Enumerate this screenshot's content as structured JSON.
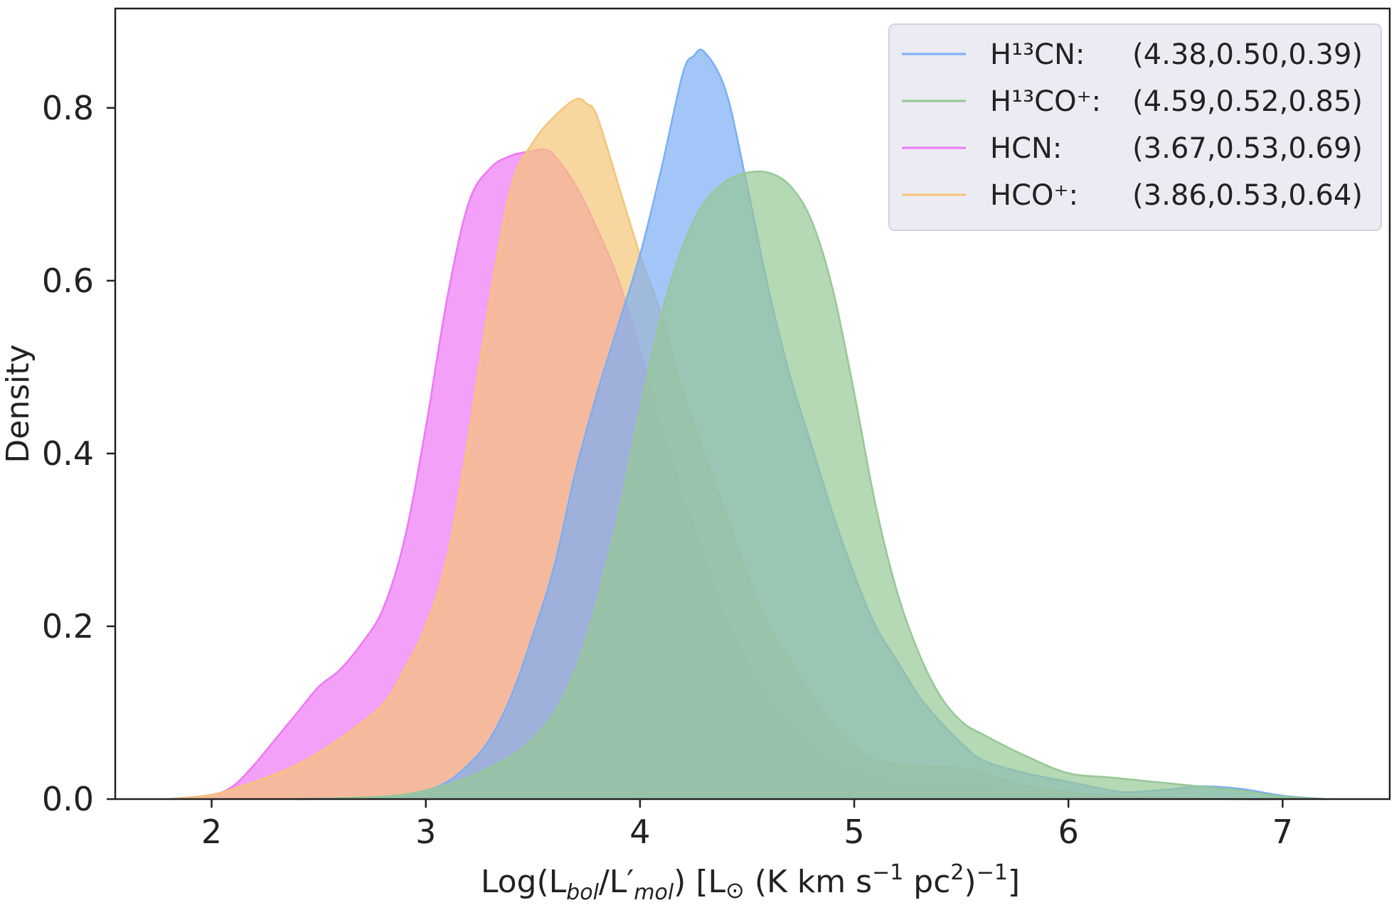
{
  "chart_data": {
    "type": "area",
    "title": "",
    "xlabel": {
      "prefix": "Log(L",
      "sub1": "bol",
      "slash": "/L",
      "prime": "′",
      "sub2": "mol",
      "mid": ") [L",
      "odot": "⊙",
      "kms": "  (K km s",
      "sup1": "−1",
      "pc": " pc",
      "sup2": "2",
      "close": ")",
      "sup3": "−1",
      "end": "]"
    },
    "ylabel": "Density",
    "xlim": [
      1.55,
      7.5
    ],
    "ylim": [
      0,
      0.915
    ],
    "xticks": [
      2,
      3,
      4,
      5,
      6,
      7
    ],
    "yticks": [
      0.0,
      0.2,
      0.4,
      0.6,
      0.8
    ],
    "legend_position": "top-right",
    "series": [
      {
        "name": "HCN",
        "legend_stats": "(3.67,0.53,0.69)",
        "color": "#ee77f5",
        "x": [
          1.8,
          2.0,
          2.1,
          2.2,
          2.3,
          2.4,
          2.5,
          2.6,
          2.7,
          2.8,
          2.9,
          3.0,
          3.1,
          3.2,
          3.3,
          3.4,
          3.5,
          3.55,
          3.6,
          3.7,
          3.8,
          3.9,
          4.0,
          4.1,
          4.2,
          4.3,
          4.4,
          4.5,
          4.6,
          4.7,
          4.8,
          4.9,
          5.0,
          5.2,
          5.4,
          5.6,
          5.8,
          6.0,
          6.2,
          6.5,
          6.8,
          7.0
        ],
        "y": [
          0.0,
          0.005,
          0.015,
          0.04,
          0.07,
          0.1,
          0.13,
          0.15,
          0.18,
          0.22,
          0.3,
          0.43,
          0.58,
          0.69,
          0.73,
          0.745,
          0.75,
          0.752,
          0.745,
          0.71,
          0.66,
          0.6,
          0.52,
          0.43,
          0.35,
          0.28,
          0.21,
          0.16,
          0.12,
          0.09,
          0.06,
          0.045,
          0.035,
          0.02,
          0.015,
          0.015,
          0.008,
          0.004,
          0.002,
          0.001,
          0.0,
          0.0
        ]
      },
      {
        "name": "HCO⁺",
        "legend_stats": "(3.86,0.53,0.64)",
        "color": "#f5c478",
        "x": [
          1.8,
          2.0,
          2.2,
          2.4,
          2.6,
          2.8,
          2.9,
          3.0,
          3.1,
          3.2,
          3.3,
          3.4,
          3.5,
          3.6,
          3.7,
          3.75,
          3.8,
          3.9,
          4.0,
          4.1,
          4.2,
          4.3,
          4.4,
          4.5,
          4.6,
          4.7,
          4.8,
          4.9,
          5.0,
          5.1,
          5.2,
          5.4,
          5.5,
          5.6,
          5.8,
          6.0,
          6.2,
          6.5,
          6.8,
          7.0
        ],
        "y": [
          0.0,
          0.005,
          0.02,
          0.04,
          0.07,
          0.11,
          0.15,
          0.2,
          0.28,
          0.42,
          0.58,
          0.71,
          0.76,
          0.79,
          0.81,
          0.805,
          0.79,
          0.71,
          0.63,
          0.56,
          0.47,
          0.4,
          0.33,
          0.26,
          0.2,
          0.16,
          0.12,
          0.085,
          0.06,
          0.045,
          0.04,
          0.037,
          0.035,
          0.03,
          0.015,
          0.008,
          0.004,
          0.002,
          0.0,
          0.0
        ]
      },
      {
        "name": "H¹³CN",
        "legend_stats": "(4.38,0.50,0.39)",
        "color": "#7aaef5",
        "x": [
          2.4,
          2.8,
          3.0,
          3.1,
          3.2,
          3.3,
          3.4,
          3.5,
          3.6,
          3.7,
          3.8,
          3.9,
          4.0,
          4.1,
          4.2,
          4.25,
          4.3,
          4.4,
          4.5,
          4.6,
          4.7,
          4.8,
          4.9,
          5.0,
          5.1,
          5.2,
          5.3,
          5.4,
          5.5,
          5.6,
          5.8,
          6.0,
          6.2,
          6.3,
          6.5,
          6.6,
          6.8,
          7.0,
          7.2
        ],
        "y": [
          0.0,
          0.002,
          0.01,
          0.02,
          0.04,
          0.07,
          0.12,
          0.19,
          0.27,
          0.38,
          0.47,
          0.55,
          0.63,
          0.73,
          0.84,
          0.86,
          0.865,
          0.82,
          0.71,
          0.59,
          0.49,
          0.41,
          0.33,
          0.26,
          0.2,
          0.16,
          0.12,
          0.09,
          0.065,
          0.045,
          0.03,
          0.02,
          0.01,
          0.008,
          0.012,
          0.015,
          0.012,
          0.004,
          0.0
        ]
      },
      {
        "name": "H¹³CO⁺",
        "legend_stats": "(4.59,0.52,0.85)",
        "color": "#96c896",
        "x": [
          2.4,
          2.8,
          3.0,
          3.2,
          3.4,
          3.5,
          3.6,
          3.7,
          3.8,
          3.9,
          4.0,
          4.1,
          4.2,
          4.3,
          4.4,
          4.5,
          4.6,
          4.7,
          4.8,
          4.9,
          5.0,
          5.1,
          5.2,
          5.3,
          5.4,
          5.5,
          5.6,
          5.8,
          6.0,
          6.2,
          6.4,
          6.6,
          6.8,
          7.0,
          7.2
        ],
        "y": [
          0.0,
          0.003,
          0.01,
          0.025,
          0.05,
          0.07,
          0.1,
          0.15,
          0.23,
          0.33,
          0.45,
          0.56,
          0.64,
          0.69,
          0.715,
          0.725,
          0.725,
          0.71,
          0.67,
          0.59,
          0.47,
          0.34,
          0.24,
          0.17,
          0.12,
          0.09,
          0.075,
          0.05,
          0.03,
          0.025,
          0.02,
          0.015,
          0.01,
          0.003,
          0.0
        ]
      }
    ],
    "legend_order": [
      2,
      3,
      0,
      1
    ]
  }
}
